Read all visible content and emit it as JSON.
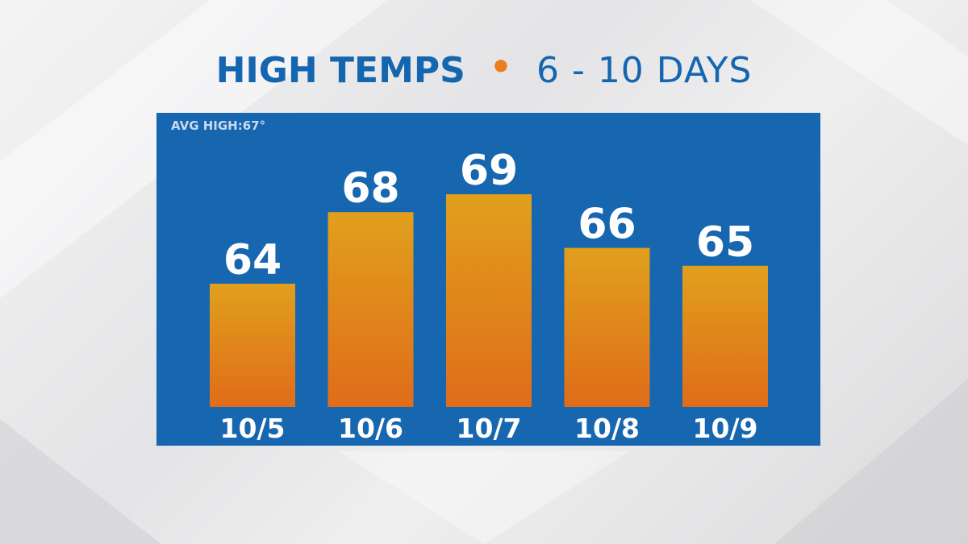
{
  "title": {
    "main": "HIGH TEMPS",
    "separator": "•",
    "sub": "6 - 10 DAYS"
  },
  "colors": {
    "title": "#1466b0",
    "separator": "#ee7d1e",
    "panel": "#1766b0",
    "bar_top": "#e0a01c",
    "bar_bottom": "#e06c1a",
    "labels": "#ffffff"
  },
  "chart_data": {
    "type": "bar",
    "annotation": "AVG HIGH:67°",
    "categories": [
      "10/5",
      "10/6",
      "10/7",
      "10/8",
      "10/9"
    ],
    "values": [
      64,
      68,
      69,
      66,
      65
    ],
    "grid": false,
    "axes_visible": false
  }
}
